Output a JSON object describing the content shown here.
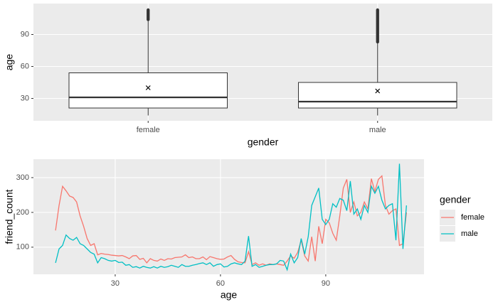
{
  "chart_data": [
    {
      "type": "box",
      "categories": [
        "female",
        "male"
      ],
      "x_label": "gender",
      "y_label": "age",
      "boxes": [
        {
          "min": 14,
          "q1": 21,
          "median": 31,
          "q3": 54,
          "max": 104,
          "mean": 40,
          "outliers": [
            104,
            105,
            106,
            107,
            108,
            109,
            110,
            111,
            112,
            113
          ]
        },
        {
          "min": 14,
          "q1": 21,
          "median": 27,
          "q3": 45,
          "max": 83,
          "mean": 37,
          "outliers": [
            83,
            84,
            85,
            86,
            87,
            88,
            89,
            90,
            91,
            92,
            93,
            94,
            95,
            96,
            97,
            98,
            99,
            100,
            101,
            102,
            103,
            104,
            105,
            106,
            107,
            108,
            109,
            110,
            111,
            112,
            113
          ]
        }
      ],
      "color": "#333333",
      "fill": "#ffffff",
      "ylim": [
        9,
        119
      ],
      "yticks": [
        30,
        60,
        90
      ],
      "grid": true
    },
    {
      "type": "line",
      "x_label": "age",
      "y_label": "friend_count",
      "x": [
        13,
        14,
        15,
        16,
        17,
        18,
        19,
        20,
        21,
        22,
        23,
        24,
        25,
        26,
        27,
        28,
        29,
        30,
        31,
        32,
        33,
        34,
        35,
        36,
        37,
        38,
        39,
        40,
        41,
        42,
        43,
        44,
        45,
        46,
        47,
        48,
        49,
        50,
        51,
        52,
        53,
        54,
        55,
        56,
        57,
        58,
        59,
        60,
        61,
        62,
        63,
        64,
        65,
        66,
        67,
        68,
        69,
        70,
        71,
        72,
        73,
        74,
        75,
        76,
        77,
        78,
        79,
        80,
        81,
        82,
        83,
        84,
        85,
        86,
        87,
        88,
        89,
        90,
        91,
        92,
        93,
        94,
        95,
        96,
        97,
        98,
        99,
        100,
        101,
        102,
        103,
        104,
        105,
        106,
        107,
        108,
        109,
        110,
        111,
        112,
        113
      ],
      "series": [
        {
          "name": "female",
          "color": "#f8766d",
          "values": [
            148,
            220,
            275,
            262,
            247,
            243,
            230,
            190,
            160,
            125,
            105,
            110,
            78,
            82,
            80,
            79,
            77,
            76,
            75,
            76,
            72,
            67,
            75,
            76,
            65,
            68,
            55,
            67,
            62,
            60,
            66,
            62,
            67,
            66,
            70,
            71,
            72,
            78,
            70,
            72,
            67,
            67,
            72,
            64,
            73,
            70,
            67,
            65,
            66,
            72,
            76,
            65,
            58,
            56,
            55,
            87,
            50,
            55,
            48,
            52,
            48,
            52,
            50,
            52,
            50,
            48,
            60,
            75,
            68,
            85,
            120,
            75,
            60,
            130,
            60,
            160,
            110,
            180,
            170,
            140,
            120,
            190,
            270,
            295,
            200,
            230,
            190,
            200,
            230,
            210,
            297,
            260,
            295,
            305,
            220,
            195,
            205,
            210,
            105,
            110,
            200
          ]
        },
        {
          "name": "male",
          "color": "#00bfc4",
          "values": [
            55,
            95,
            105,
            135,
            125,
            120,
            128,
            110,
            105,
            95,
            85,
            80,
            55,
            70,
            67,
            62,
            60,
            62,
            56,
            57,
            48,
            50,
            42,
            44,
            40,
            45,
            42,
            40,
            44,
            40,
            45,
            42,
            44,
            48,
            45,
            42,
            50,
            45,
            45,
            48,
            50,
            53,
            55,
            50,
            55,
            45,
            50,
            52,
            43,
            45,
            52,
            55,
            52,
            50,
            60,
            132,
            45,
            50,
            42,
            45,
            48,
            50,
            50,
            52,
            62,
            60,
            35,
            80,
            55,
            70,
            125,
            80,
            130,
            220,
            245,
            270,
            180,
            165,
            180,
            225,
            215,
            240,
            235,
            205,
            290,
            195,
            210,
            180,
            220,
            200,
            275,
            255,
            275,
            235,
            210,
            220,
            225,
            120,
            340,
            95,
            220
          ]
        }
      ],
      "legend_title": "gender",
      "legend": "right",
      "xlim": [
        6.7,
        118
      ],
      "ylim": [
        22,
        353
      ],
      "xticks": [
        30,
        60,
        90
      ],
      "yticks": [
        100,
        200,
        300
      ],
      "grid": true
    }
  ]
}
